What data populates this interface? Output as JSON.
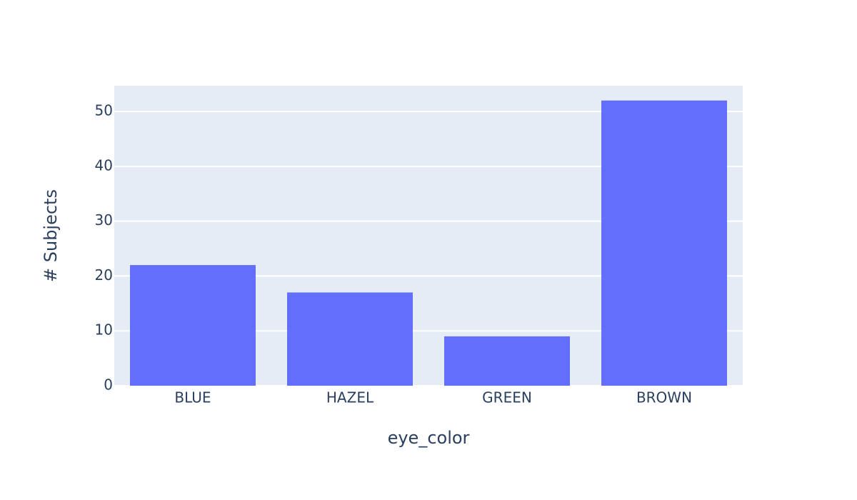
{
  "chart_data": {
    "type": "bar",
    "x_label": "eye_color",
    "y_label": "# Subjects",
    "categories": [
      "BLUE",
      "HAZEL",
      "GREEN",
      "BROWN"
    ],
    "values": [
      22,
      17,
      9,
      52
    ],
    "color": "#636efa",
    "ylim": [
      0,
      54.7
    ],
    "yticks": [
      0,
      10,
      20,
      30,
      40,
      50
    ],
    "grid": true
  }
}
